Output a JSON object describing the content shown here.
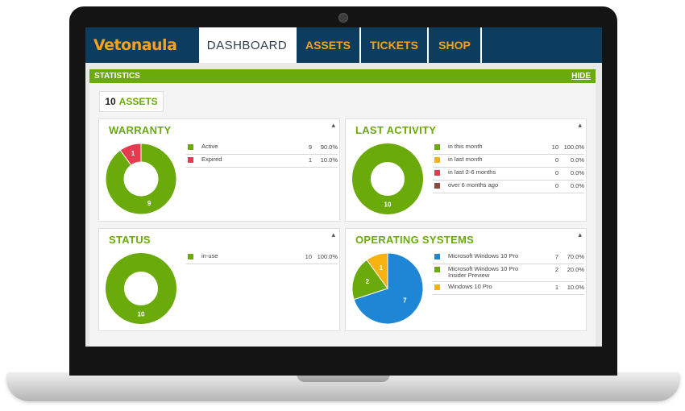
{
  "brand": {
    "name": "Vetonaula",
    "color": "#f7a21b"
  },
  "nav": {
    "tabs": [
      {
        "label": "DASHBOARD",
        "active": true
      },
      {
        "label": "ASSETS",
        "active": false
      },
      {
        "label": "TICKETS",
        "active": false
      },
      {
        "label": "SHOP",
        "active": false
      }
    ]
  },
  "stats_bar": {
    "title": "STATISTICS",
    "hide_label": "HIDE"
  },
  "asset_count": {
    "number": "10",
    "label": "ASSETS"
  },
  "colors": {
    "green": "#6aaa0a",
    "red": "#e63b4f",
    "orange": "#f8b20f",
    "brown": "#8b4a3c",
    "blue": "#1f86d6",
    "navy": "#0d3d5e"
  },
  "panels": [
    {
      "title": "WARRANTY",
      "legend": [
        {
          "label": "Active",
          "count": "9",
          "percent": "90.0%",
          "color": "#6aaa0a"
        },
        {
          "label": "Expired",
          "count": "1",
          "percent": "10.0%",
          "color": "#e63b4f"
        }
      ]
    },
    {
      "title": "LAST ACTIVITY",
      "legend": [
        {
          "label": "in this month",
          "count": "10",
          "percent": "100.0%",
          "color": "#6aaa0a"
        },
        {
          "label": "in last month",
          "count": "0",
          "percent": "0.0%",
          "color": "#f8b20f"
        },
        {
          "label": "in last 2-6 months",
          "count": "0",
          "percent": "0.0%",
          "color": "#e63b4f"
        },
        {
          "label": "over 6 months ago",
          "count": "0",
          "percent": "0.0%",
          "color": "#8b4a3c"
        }
      ]
    },
    {
      "title": "STATUS",
      "legend": [
        {
          "label": "in-use",
          "count": "10",
          "percent": "100.0%",
          "color": "#6aaa0a"
        }
      ]
    },
    {
      "title": "OPERATING SYSTEMS",
      "legend": [
        {
          "label": "Microsoft Windows 10 Pro",
          "count": "7",
          "percent": "70.0%",
          "color": "#1f86d6"
        },
        {
          "label": "Microsoft Windows 10 Pro Insider Preview",
          "count": "2",
          "percent": "20.0%",
          "color": "#6aaa0a"
        },
        {
          "label": "Windows 10 Pro",
          "count": "1",
          "percent": "10.0%",
          "color": "#f8b20f"
        }
      ]
    }
  ],
  "chart_data": [
    {
      "type": "pie",
      "categories": [
        "Active",
        "Expired"
      ],
      "values": [
        9,
        1
      ],
      "data_labels": [
        "9",
        "1"
      ],
      "colors": [
        "#6aaa0a",
        "#e63b4f"
      ],
      "title": "WARRANTY",
      "start_category": "Expired"
    },
    {
      "type": "pie",
      "categories": [
        "in this month",
        "in last month",
        "in last 2-6 months",
        "over 6 months ago"
      ],
      "values": [
        10,
        0,
        0,
        0
      ],
      "data_labels": [
        "10",
        "",
        "",
        ""
      ],
      "colors": [
        "#6aaa0a",
        "#f8b20f",
        "#e63b4f",
        "#8b4a3c"
      ],
      "title": "LAST ACTIVITY"
    },
    {
      "type": "pie",
      "categories": [
        "in-use"
      ],
      "values": [
        10
      ],
      "data_labels": [
        "10"
      ],
      "colors": [
        "#6aaa0a"
      ],
      "title": "STATUS"
    },
    {
      "type": "pie",
      "categories": [
        "Microsoft Windows 10 Pro",
        "Microsoft Windows 10 Pro Insider Preview",
        "Windows 10 Pro"
      ],
      "values": [
        7,
        2,
        1
      ],
      "data_labels": [
        "7",
        "2",
        "1"
      ],
      "colors": [
        "#1f86d6",
        "#6aaa0a",
        "#f8b20f"
      ],
      "title": "OPERATING SYSTEMS"
    }
  ]
}
